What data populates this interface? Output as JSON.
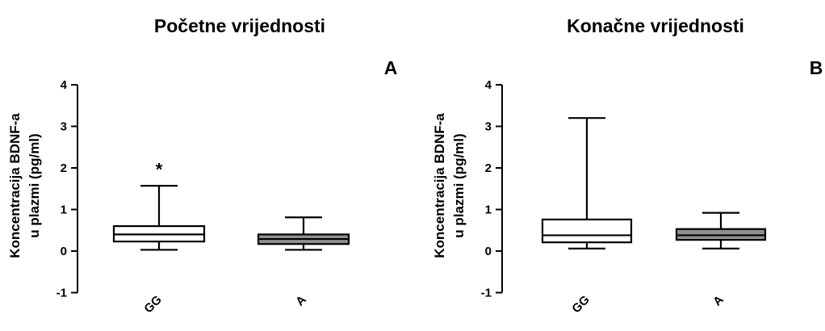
{
  "chart_data": [
    {
      "type": "box",
      "title": "Početne vrijednosti",
      "panel": "A",
      "ylabel_lines": [
        "Koncentracija BDNF-a",
        "u plazmi (pg/ml)"
      ],
      "ylim": [
        -1,
        4
      ],
      "yticks": [
        -1,
        0,
        1,
        2,
        3,
        4
      ],
      "categories": [
        "GG",
        "A"
      ],
      "boxes": [
        {
          "name": "GG",
          "min": 0.03,
          "q1": 0.23,
          "median": 0.4,
          "q3": 0.6,
          "max": 1.57,
          "fill": "#ffffff"
        },
        {
          "name": "A",
          "min": 0.03,
          "q1": 0.17,
          "median": 0.29,
          "q3": 0.4,
          "max": 0.81,
          "fill": "#909090"
        }
      ],
      "annotations": [
        {
          "text": "*",
          "category": "GG",
          "y": 2.05
        }
      ]
    },
    {
      "type": "box",
      "title": "Konačne vrijednosti",
      "panel": "B",
      "ylabel_lines": [
        "Koncentracija BDNF-a",
        "u plazmi (pg/ml)"
      ],
      "ylim": [
        -1,
        4
      ],
      "yticks": [
        -1,
        0,
        1,
        2,
        3,
        4
      ],
      "categories": [
        "GG",
        "A"
      ],
      "boxes": [
        {
          "name": "GG",
          "min": 0.06,
          "q1": 0.21,
          "median": 0.38,
          "q3": 0.76,
          "max": 3.2,
          "fill": "#ffffff"
        },
        {
          "name": "A",
          "min": 0.06,
          "q1": 0.27,
          "median": 0.38,
          "q3": 0.53,
          "max": 0.92,
          "fill": "#909090"
        }
      ],
      "annotations": []
    }
  ]
}
